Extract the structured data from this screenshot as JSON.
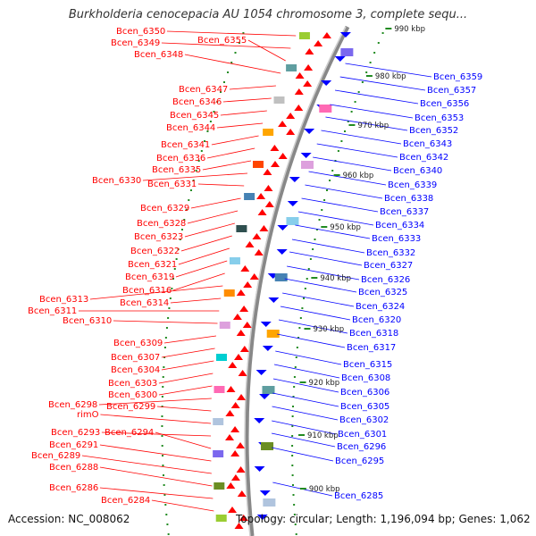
{
  "title": "Burkholderia cenocepacia AU 1054 chromosome 3, complete sequ...",
  "footer": {
    "accession": "Accession: NC_008062",
    "summary": "Topology: circular; Length: 1,196,094 bp; Genes: 1,062"
  },
  "colors": {
    "forward": "#ff0000",
    "reverse": "#0000ff",
    "backbone": "#888888",
    "tick": "#228b22"
  },
  "kbp_marks": [
    "990 kbp",
    "980 kbp",
    "970 kbp",
    "960 kbp",
    "950 kbp",
    "940 kbp",
    "930 kbp",
    "920 kbp",
    "910 kbp",
    "900 kbp"
  ],
  "left_labels": [
    "Bcen_6350",
    "Bcen_6349",
    "Bcen_6355",
    "Bcen_6348",
    "Bcen_6347",
    "Bcen_6346",
    "Bcen_6345",
    "Bcen_6344",
    "Bcen_6341",
    "Bcen_6336",
    "Bcen_6335",
    "Bcen_6330",
    "Bcen_6331",
    "Bcen_6329",
    "Bcen_6328",
    "Bcen_6323",
    "Bcen_6322",
    "Bcen_6321",
    "Bcen_6319",
    "Bcen_6316",
    "Bcen_6313",
    "Bcen_6314",
    "Bcen_6311",
    "Bcen_6310",
    "Bcen_6309",
    "Bcen_6307",
    "Bcen_6304",
    "Bcen_6303",
    "Bcen_6300",
    "Bcen_6298",
    "Bcen_6299",
    "rimO",
    "Bcen_6293",
    "Bcen_6294",
    "Bcen_6291",
    "Bcen_6289",
    "Bcen_6288",
    "Bcen_6286",
    "Bcen_6284"
  ],
  "right_labels": [
    "Bcen_6359",
    "Bcen_6357",
    "Bcen_6356",
    "Bcen_6353",
    "Bcen_6352",
    "Bcen_6343",
    "Bcen_6342",
    "Bcen_6340",
    "Bcen_6339",
    "Bcen_6338",
    "Bcen_6337",
    "Bcen_6334",
    "Bcen_6333",
    "Bcen_6332",
    "Bcen_6327",
    "Bcen_6326",
    "Bcen_6325",
    "Bcen_6324",
    "Bcen_6320",
    "Bcen_6318",
    "Bcen_6317",
    "Bcen_6315",
    "Bcen_6308",
    "Bcen_6306",
    "Bcen_6305",
    "Bcen_6302",
    "Bcen_6301",
    "Bcen_6296",
    "Bcen_6295",
    "Bcen_6285"
  ]
}
